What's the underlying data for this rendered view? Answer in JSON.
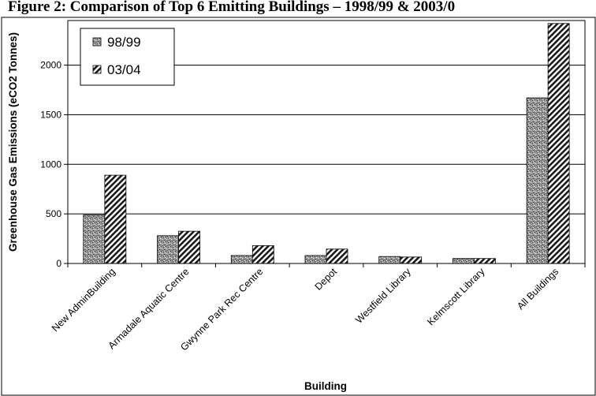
{
  "chart_data": {
    "type": "bar",
    "title": "Figure 2: Comparison of Top 6 Emitting Buildings – 1998/99 & 2003/0",
    "xlabel": "Building",
    "ylabel": "Greenhouse Gas Emissions (eCO2 Tonnes)",
    "ylim": [
      0,
      2450
    ],
    "yticks": [
      0,
      500,
      1000,
      1500,
      2000
    ],
    "grid": true,
    "legend_position": "top-left",
    "categories": [
      "New AdminBuilding",
      "Armadale Aquatic Centre",
      "Gwynne Park Rec Centre",
      "Depot",
      "Westfield Library",
      "Kelmscott Library",
      "All Buildings"
    ],
    "series": [
      {
        "name": "98/99",
        "values": [
          490,
          280,
          80,
          80,
          70,
          50,
          1670
        ],
        "pattern": "stipple"
      },
      {
        "name": "03/04",
        "values": [
          890,
          325,
          180,
          145,
          65,
          50,
          2420
        ],
        "pattern": "hatch"
      }
    ]
  }
}
